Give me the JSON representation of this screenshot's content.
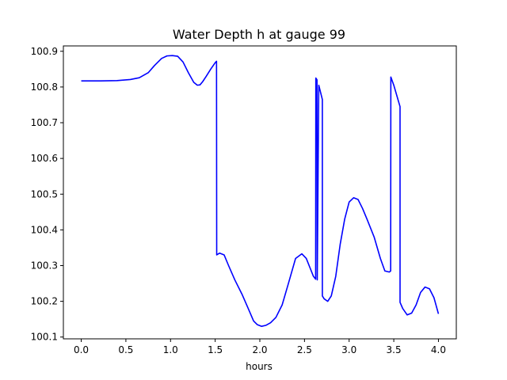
{
  "chart_data": {
    "type": "line",
    "title": "Water Depth h at gauge 99",
    "xlabel": "hours",
    "ylabel": "",
    "xlim": [
      -0.2,
      4.2
    ],
    "ylim": [
      100.095,
      100.915
    ],
    "xticks": [
      0.0,
      0.5,
      1.0,
      1.5,
      2.0,
      2.5,
      3.0,
      3.5,
      4.0
    ],
    "xtick_labels": [
      "0.0",
      "0.5",
      "1.0",
      "1.5",
      "2.0",
      "2.5",
      "3.0",
      "3.5",
      "4.0"
    ],
    "yticks": [
      100.1,
      100.2,
      100.3,
      100.4,
      100.5,
      100.6,
      100.7,
      100.8,
      100.9
    ],
    "ytick_labels": [
      "100.1",
      "100.2",
      "100.3",
      "100.4",
      "100.5",
      "100.6",
      "100.7",
      "100.8",
      "100.9"
    ],
    "grid": false,
    "series": [
      {
        "color": "#0000ff",
        "x": [
          0.0,
          0.2,
          0.4,
          0.55,
          0.65,
          0.75,
          0.82,
          0.9,
          0.96,
          1.02,
          1.08,
          1.14,
          1.2,
          1.26,
          1.3,
          1.33,
          1.36,
          1.4,
          1.45,
          1.5,
          1.515,
          1.517,
          1.55,
          1.6,
          1.65,
          1.72,
          1.8,
          1.87,
          1.93,
          1.97,
          2.02,
          2.07,
          2.12,
          2.18,
          2.25,
          2.32,
          2.4,
          2.47,
          2.52,
          2.56,
          2.6,
          2.625,
          2.627,
          2.64,
          2.643,
          2.66,
          2.7,
          2.7002,
          2.72,
          2.76,
          2.8,
          2.85,
          2.9,
          2.95,
          3.0,
          3.05,
          3.1,
          3.15,
          3.2,
          3.28,
          3.35,
          3.4,
          3.45,
          3.465,
          3.467,
          3.5,
          3.57,
          3.5702,
          3.6,
          3.65,
          3.7,
          3.75,
          3.8,
          3.85,
          3.9,
          3.95,
          4.0
        ],
        "y": [
          100.817,
          100.817,
          100.818,
          100.821,
          100.826,
          100.84,
          100.86,
          100.88,
          100.887,
          100.888,
          100.886,
          100.87,
          100.84,
          100.813,
          100.805,
          100.806,
          100.815,
          100.83,
          100.85,
          100.868,
          100.872,
          100.33,
          100.335,
          100.33,
          100.3,
          100.26,
          100.22,
          100.18,
          100.145,
          100.135,
          100.13,
          100.133,
          100.14,
          100.155,
          100.19,
          100.25,
          100.32,
          100.333,
          100.32,
          100.295,
          100.27,
          100.262,
          100.825,
          100.82,
          100.26,
          100.805,
          100.765,
          100.215,
          100.207,
          100.2,
          100.215,
          100.27,
          100.36,
          100.43,
          100.478,
          100.49,
          100.485,
          100.46,
          100.43,
          100.38,
          100.32,
          100.285,
          100.282,
          100.285,
          100.828,
          100.805,
          100.745,
          100.197,
          100.18,
          100.162,
          100.167,
          100.19,
          100.225,
          100.24,
          100.235,
          100.21,
          100.165
        ]
      }
    ]
  }
}
